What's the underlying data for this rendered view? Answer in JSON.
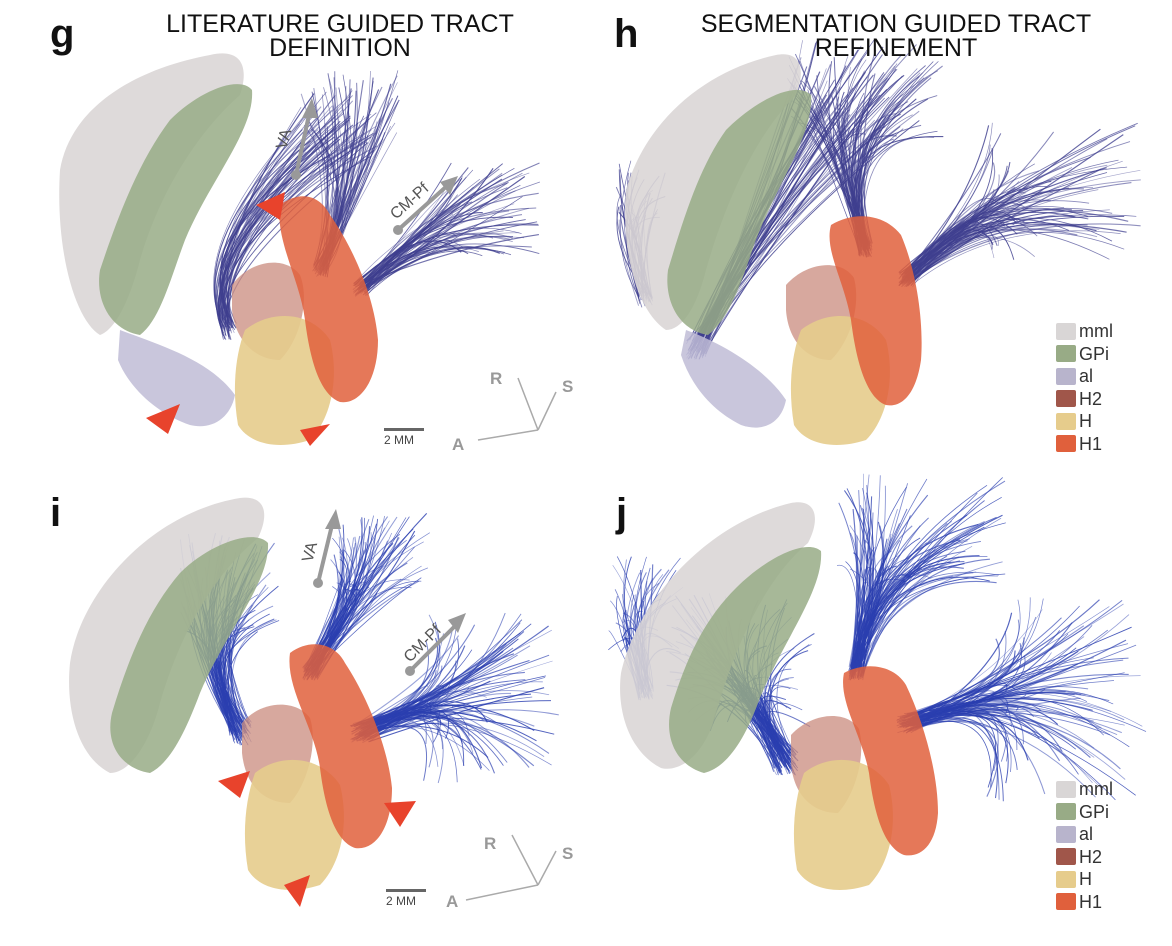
{
  "titles": {
    "left": "LITERATURE GUIDED TRACT DEFINITION",
    "left_line1": "LITERATURE GUIDED TRACT",
    "left_line2": "DEFINITION",
    "right_line1": "SEGMENTATION GUIDED TRACT",
    "right_line2": "REFINEMENT"
  },
  "panels": [
    {
      "label": "g"
    },
    {
      "label": "h"
    },
    {
      "label": "i"
    },
    {
      "label": "j"
    }
  ],
  "arrow_labels": {
    "va": "VA",
    "cmpf": "CM-Pf"
  },
  "axes": {
    "r": "R",
    "s": "S",
    "a": "A"
  },
  "scale_bar": "2 MM",
  "legend": [
    {
      "label": "mml",
      "color": "#d9d6d6"
    },
    {
      "label": "GPi",
      "color": "#98ab86"
    },
    {
      "label": "al",
      "color": "#b8b4cc"
    },
    {
      "label": "H2",
      "color": "#a0564a"
    },
    {
      "label": "H",
      "color": "#e6cc8c"
    },
    {
      "label": "H1",
      "color": "#e0603c"
    }
  ],
  "colors": {
    "fiber_top": "#3f3f8f",
    "fiber_bottom": "#2b3fb0",
    "arrowhead": "#e8432c",
    "mml": "#d9d6d6",
    "gpi": "#98ab86",
    "al": "#c0bcd6",
    "h2": "#c98b7e",
    "h": "#e6cc8c",
    "h1": "#e0603c"
  }
}
